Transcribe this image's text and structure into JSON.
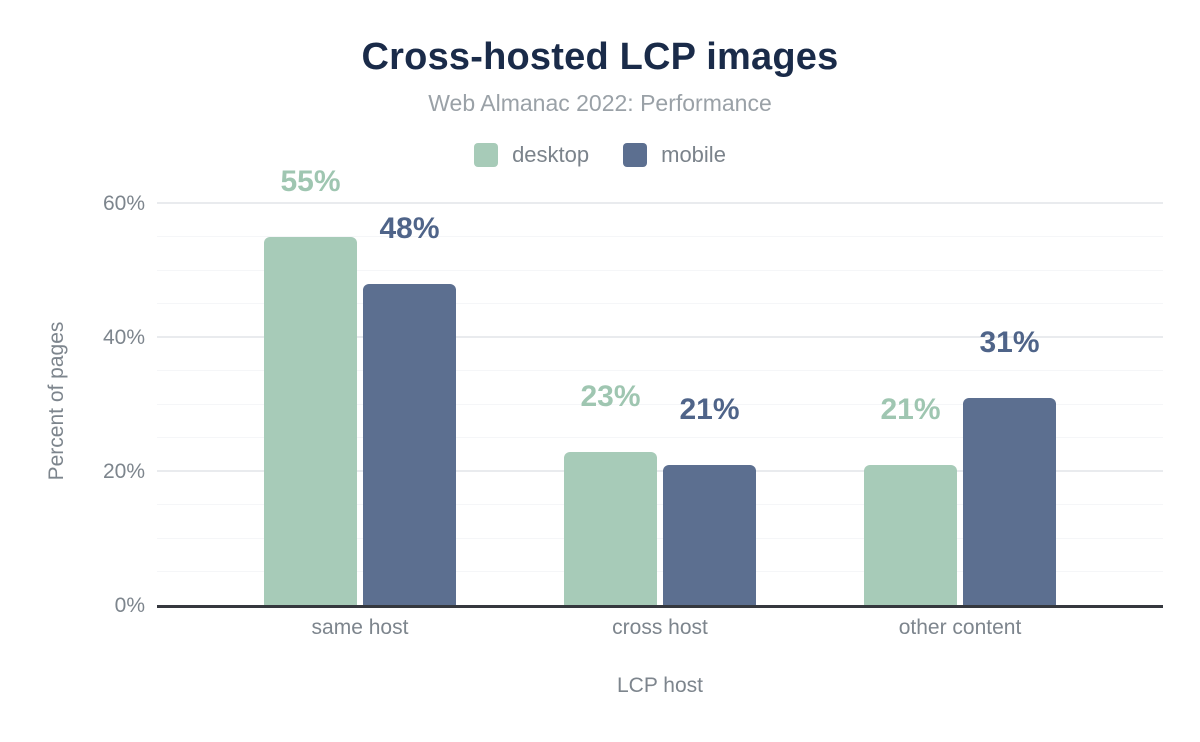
{
  "chart_data": {
    "type": "bar",
    "title": "Cross-hosted LCP images",
    "subtitle": "Web Almanac 2022: Performance",
    "xlabel": "LCP host",
    "ylabel": "Percent of pages",
    "categories": [
      "same host",
      "cross host",
      "other content"
    ],
    "series": [
      {
        "name": "desktop",
        "values": [
          55,
          23,
          21
        ],
        "value_labels": [
          "55%",
          "23%",
          "21%"
        ],
        "color": "#a7cbb8",
        "label_color": "#9fc6b1"
      },
      {
        "name": "mobile",
        "values": [
          48,
          21,
          31
        ],
        "value_labels": [
          "48%",
          "21%",
          "31%"
        ],
        "color": "#5c6f90",
        "label_color": "#4f6489"
      }
    ],
    "ylim": [
      0,
      65
    ],
    "yticks": [
      {
        "value": 0,
        "label": "0%"
      },
      {
        "value": 20,
        "label": "20%"
      },
      {
        "value": 40,
        "label": "40%"
      },
      {
        "value": 60,
        "label": "60%"
      }
    ],
    "grid": {
      "orientation": "horizontal",
      "minor_step": 5,
      "major_step": 20,
      "minor_color": "#f5f6f8",
      "major_color": "#e9ebee"
    },
    "legend_position": "top"
  },
  "colors": {
    "title_text": "#1a2b49",
    "subtitle_text": "#9aa1a7",
    "axis_text": "#7d858d",
    "axis_line": "#35383e",
    "desktop_series": "#a7cbb8",
    "mobile_series": "#5c6f90",
    "background": "#ffffff"
  }
}
